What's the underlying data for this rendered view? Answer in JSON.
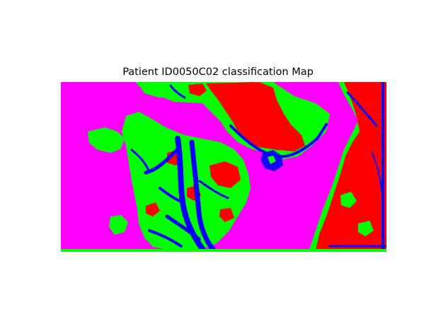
{
  "figure": {
    "title": "Patient ID0050C02 classification Map"
  },
  "map": {
    "legend": "none",
    "classes": [
      {
        "name": "class-magenta",
        "color": "#ff00ff"
      },
      {
        "name": "class-green",
        "color": "#00ff00"
      },
      {
        "name": "class-red",
        "color": "#ff0000"
      },
      {
        "name": "class-blue",
        "color": "#0000ff"
      }
    ]
  }
}
